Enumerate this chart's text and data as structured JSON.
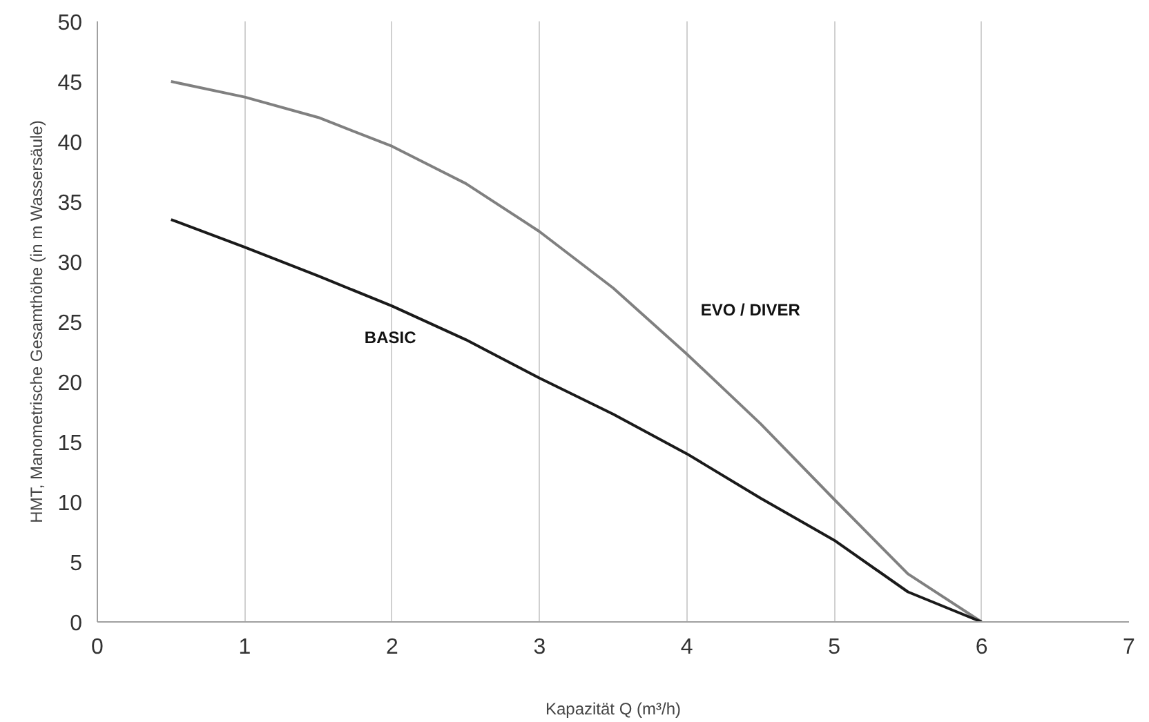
{
  "chart_data": {
    "type": "line",
    "xlabel": "Kapazität Q (m³/h)",
    "ylabel": "HMT, Manometrische Gesamthöhe (in m Wassersäule)",
    "xlim": [
      0,
      7
    ],
    "xticks": [
      0,
      1,
      2,
      3,
      4,
      5,
      6,
      7
    ],
    "ylim": [
      0,
      50
    ],
    "yticks": [
      0,
      5,
      10,
      15,
      20,
      25,
      30,
      35,
      40,
      45,
      50
    ],
    "grid": "x",
    "marker": "none",
    "line_style": "solid",
    "series": [
      {
        "name": "EVO / DIVER",
        "color": "#808080",
        "x": [
          0.5,
          1,
          1.5,
          2,
          2.5,
          3,
          3.5,
          4,
          4.5,
          5,
          5.5,
          6
        ],
        "values": [
          45,
          43.7,
          42,
          39.6,
          36.5,
          32.5,
          27.8,
          22.3,
          16.5,
          10.2,
          4,
          0
        ]
      },
      {
        "name": "BASIC",
        "color": "#1a1a1a",
        "x": [
          0.5,
          1,
          1.5,
          2,
          2.5,
          3,
          3.5,
          4,
          4.5,
          5,
          5.5,
          6
        ],
        "values": [
          33.5,
          31.2,
          28.8,
          26.3,
          23.5,
          20.3,
          17.3,
          14,
          10.3,
          6.8,
          2.5,
          0
        ]
      }
    ]
  }
}
